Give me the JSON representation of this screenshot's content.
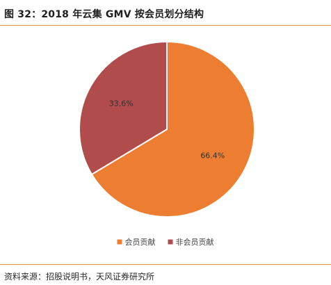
{
  "header": {
    "title": "图 32：2018 年云集 GMV 按会员划分结构"
  },
  "chart_data": {
    "type": "pie",
    "title": "",
    "categories": [
      "会员贡献",
      "非会员贡献"
    ],
    "values": [
      66.4,
      33.6
    ],
    "value_labels": [
      "66.4%",
      "33.6%"
    ],
    "unit": "%",
    "colors": [
      "#ed7d31",
      "#b04c4c"
    ],
    "start_angle": "12 o'clock, clockwise",
    "legend_position": "bottom-center"
  },
  "footer": {
    "source": "资料来源：招股说明书，天风证券研究所"
  }
}
